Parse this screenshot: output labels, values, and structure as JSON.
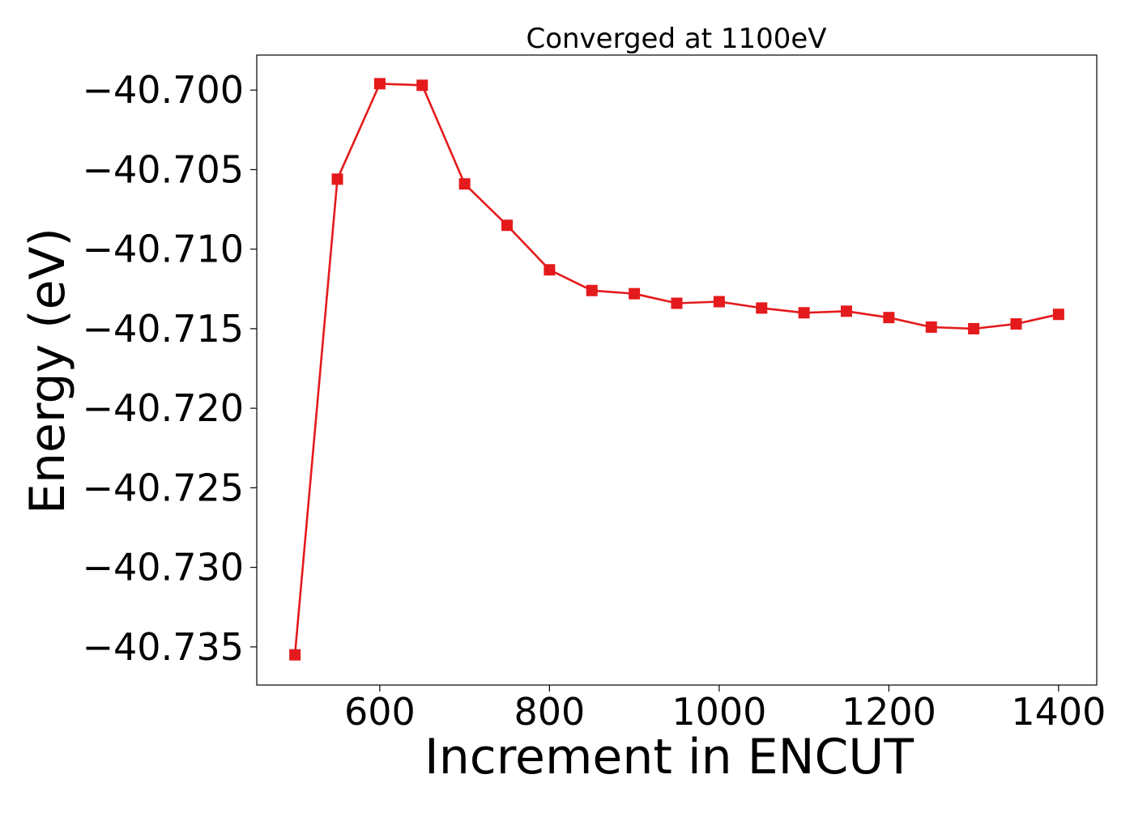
{
  "chart_data": {
    "type": "line",
    "title": "Converged at 1100eV",
    "xlabel": "Increment in ENCUT",
    "ylabel": "Energy (eV)",
    "xlim": [
      455,
      1445
    ],
    "ylim": [
      -40.7374,
      -40.6978
    ],
    "x_ticks": [
      600,
      800,
      1000,
      1200,
      1400
    ],
    "x_tick_labels": [
      "600",
      "800",
      "1000",
      "1200",
      "1400"
    ],
    "y_ticks": [
      -40.7,
      -40.705,
      -40.71,
      -40.715,
      -40.72,
      -40.725,
      -40.73,
      -40.735
    ],
    "y_tick_labels": [
      "−40.700",
      "−40.705",
      "−40.710",
      "−40.715",
      "−40.720",
      "−40.725",
      "−40.730",
      "−40.735"
    ],
    "grid": false,
    "series": [
      {
        "color": "#e41a1c",
        "marker": "square",
        "x": [
          500,
          550,
          600,
          650,
          700,
          750,
          800,
          850,
          900,
          950,
          1000,
          1050,
          1100,
          1150,
          1200,
          1250,
          1300,
          1350,
          1400
        ],
        "y": [
          -40.7355,
          -40.7056,
          -40.6996,
          -40.6997,
          -40.7059,
          -40.7085,
          -40.7113,
          -40.7126,
          -40.7128,
          -40.7134,
          -40.7133,
          -40.7137,
          -40.714,
          -40.7139,
          -40.7143,
          -40.7149,
          -40.715,
          -40.7147,
          -40.7141
        ]
      }
    ]
  }
}
